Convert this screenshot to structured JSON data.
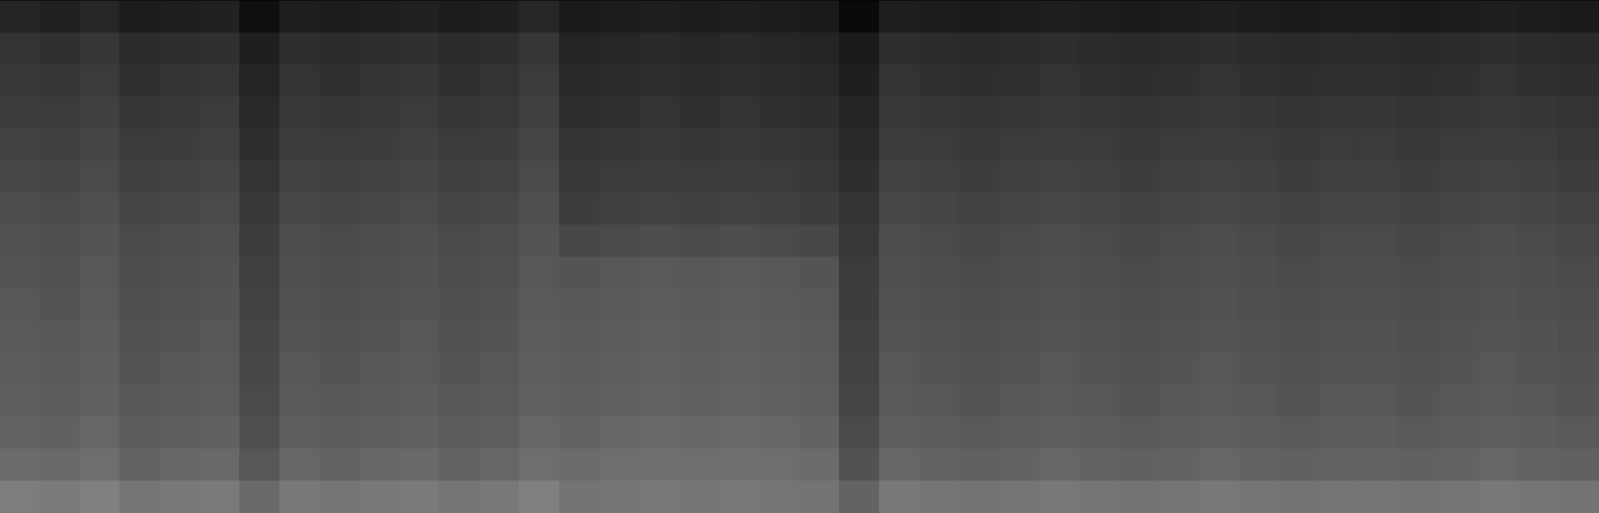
{
  "chart_data": {
    "type": "heatmap",
    "tick_labels": false,
    "value_range": [
      0,
      1
    ],
    "cells": [
      [
        0.14,
        0.13,
        0.15,
        0.11,
        0.12,
        0.13,
        0.06,
        0.12,
        0.11,
        0.12,
        0.13,
        0.11,
        0.12,
        0.15,
        0.1,
        0.11,
        0.12,
        0.11,
        0.12,
        0.11,
        0.1,
        0.04,
        0.12,
        0.11,
        0.1,
        0.11,
        0.12,
        0.11,
        0.1,
        0.11,
        0.12,
        0.11,
        0.1,
        0.11,
        0.11,
        0.1,
        0.11,
        0.12,
        0.11,
        0.1
      ],
      [
        0.2,
        0.19,
        0.21,
        0.17,
        0.18,
        0.19,
        0.12,
        0.18,
        0.17,
        0.18,
        0.19,
        0.17,
        0.18,
        0.21,
        0.14,
        0.15,
        0.16,
        0.15,
        0.16,
        0.15,
        0.14,
        0.1,
        0.18,
        0.17,
        0.16,
        0.17,
        0.18,
        0.17,
        0.16,
        0.17,
        0.18,
        0.17,
        0.16,
        0.17,
        0.17,
        0.16,
        0.17,
        0.18,
        0.17,
        0.16
      ],
      [
        0.22,
        0.21,
        0.23,
        0.19,
        0.2,
        0.21,
        0.14,
        0.2,
        0.19,
        0.2,
        0.21,
        0.19,
        0.2,
        0.23,
        0.16,
        0.17,
        0.18,
        0.17,
        0.18,
        0.17,
        0.16,
        0.12,
        0.2,
        0.19,
        0.18,
        0.19,
        0.2,
        0.19,
        0.18,
        0.19,
        0.2,
        0.19,
        0.18,
        0.19,
        0.19,
        0.18,
        0.19,
        0.2,
        0.19,
        0.18
      ],
      [
        0.24,
        0.23,
        0.25,
        0.21,
        0.22,
        0.23,
        0.16,
        0.22,
        0.21,
        0.22,
        0.23,
        0.21,
        0.22,
        0.25,
        0.18,
        0.19,
        0.2,
        0.19,
        0.2,
        0.19,
        0.18,
        0.14,
        0.22,
        0.21,
        0.2,
        0.21,
        0.22,
        0.21,
        0.2,
        0.21,
        0.22,
        0.21,
        0.2,
        0.21,
        0.21,
        0.2,
        0.21,
        0.22,
        0.21,
        0.2
      ],
      [
        0.26,
        0.25,
        0.27,
        0.23,
        0.24,
        0.25,
        0.18,
        0.24,
        0.23,
        0.24,
        0.25,
        0.23,
        0.24,
        0.27,
        0.2,
        0.21,
        0.22,
        0.21,
        0.22,
        0.21,
        0.2,
        0.16,
        0.24,
        0.23,
        0.22,
        0.23,
        0.24,
        0.23,
        0.22,
        0.23,
        0.24,
        0.23,
        0.22,
        0.23,
        0.23,
        0.22,
        0.23,
        0.24,
        0.23,
        0.22
      ],
      [
        0.28,
        0.27,
        0.29,
        0.25,
        0.26,
        0.27,
        0.2,
        0.26,
        0.25,
        0.26,
        0.27,
        0.25,
        0.26,
        0.29,
        0.22,
        0.23,
        0.24,
        0.23,
        0.24,
        0.23,
        0.22,
        0.18,
        0.26,
        0.25,
        0.24,
        0.25,
        0.26,
        0.25,
        0.24,
        0.25,
        0.26,
        0.25,
        0.24,
        0.25,
        0.25,
        0.24,
        0.25,
        0.26,
        0.25,
        0.24
      ],
      [
        0.3,
        0.29,
        0.31,
        0.27,
        0.28,
        0.29,
        0.22,
        0.28,
        0.27,
        0.28,
        0.29,
        0.27,
        0.28,
        0.31,
        0.24,
        0.25,
        0.26,
        0.25,
        0.26,
        0.25,
        0.24,
        0.2,
        0.28,
        0.27,
        0.26,
        0.27,
        0.28,
        0.27,
        0.26,
        0.27,
        0.28,
        0.27,
        0.26,
        0.27,
        0.27,
        0.26,
        0.27,
        0.28,
        0.27,
        0.26
      ],
      [
        0.32,
        0.31,
        0.33,
        0.29,
        0.3,
        0.31,
        0.24,
        0.3,
        0.29,
        0.3,
        0.31,
        0.29,
        0.3,
        0.33,
        0.28,
        0.29,
        0.3,
        0.29,
        0.3,
        0.29,
        0.28,
        0.22,
        0.3,
        0.29,
        0.28,
        0.29,
        0.3,
        0.29,
        0.28,
        0.29,
        0.3,
        0.29,
        0.28,
        0.29,
        0.29,
        0.28,
        0.29,
        0.3,
        0.29,
        0.28
      ],
      [
        0.33,
        0.32,
        0.34,
        0.3,
        0.31,
        0.32,
        0.25,
        0.31,
        0.3,
        0.31,
        0.32,
        0.3,
        0.31,
        0.34,
        0.33,
        0.34,
        0.35,
        0.34,
        0.35,
        0.34,
        0.33,
        0.23,
        0.31,
        0.3,
        0.29,
        0.3,
        0.31,
        0.3,
        0.29,
        0.3,
        0.31,
        0.3,
        0.29,
        0.3,
        0.3,
        0.29,
        0.3,
        0.31,
        0.3,
        0.29
      ],
      [
        0.34,
        0.33,
        0.35,
        0.31,
        0.32,
        0.33,
        0.26,
        0.32,
        0.31,
        0.32,
        0.33,
        0.31,
        0.32,
        0.35,
        0.34,
        0.35,
        0.36,
        0.35,
        0.36,
        0.35,
        0.34,
        0.24,
        0.32,
        0.31,
        0.3,
        0.31,
        0.32,
        0.31,
        0.3,
        0.31,
        0.32,
        0.31,
        0.3,
        0.31,
        0.31,
        0.3,
        0.31,
        0.32,
        0.31,
        0.3
      ],
      [
        0.35,
        0.34,
        0.36,
        0.32,
        0.33,
        0.34,
        0.27,
        0.33,
        0.32,
        0.33,
        0.34,
        0.32,
        0.33,
        0.36,
        0.35,
        0.36,
        0.37,
        0.36,
        0.37,
        0.36,
        0.35,
        0.25,
        0.33,
        0.32,
        0.31,
        0.32,
        0.33,
        0.32,
        0.31,
        0.32,
        0.33,
        0.32,
        0.31,
        0.32,
        0.32,
        0.31,
        0.32,
        0.33,
        0.32,
        0.31
      ],
      [
        0.36,
        0.35,
        0.37,
        0.33,
        0.34,
        0.35,
        0.28,
        0.34,
        0.33,
        0.34,
        0.35,
        0.33,
        0.34,
        0.37,
        0.36,
        0.37,
        0.38,
        0.37,
        0.38,
        0.37,
        0.36,
        0.26,
        0.34,
        0.33,
        0.32,
        0.33,
        0.34,
        0.33,
        0.32,
        0.33,
        0.34,
        0.33,
        0.32,
        0.33,
        0.33,
        0.32,
        0.33,
        0.34,
        0.33,
        0.32
      ],
      [
        0.37,
        0.36,
        0.38,
        0.34,
        0.35,
        0.36,
        0.29,
        0.35,
        0.34,
        0.35,
        0.36,
        0.34,
        0.35,
        0.38,
        0.37,
        0.38,
        0.39,
        0.38,
        0.39,
        0.38,
        0.37,
        0.27,
        0.35,
        0.34,
        0.33,
        0.34,
        0.35,
        0.34,
        0.33,
        0.34,
        0.35,
        0.34,
        0.33,
        0.34,
        0.34,
        0.33,
        0.34,
        0.35,
        0.34,
        0.33
      ],
      [
        0.39,
        0.38,
        0.4,
        0.36,
        0.37,
        0.38,
        0.31,
        0.37,
        0.36,
        0.37,
        0.38,
        0.36,
        0.37,
        0.4,
        0.39,
        0.4,
        0.41,
        0.4,
        0.41,
        0.4,
        0.39,
        0.29,
        0.37,
        0.36,
        0.35,
        0.36,
        0.37,
        0.36,
        0.35,
        0.36,
        0.37,
        0.36,
        0.35,
        0.36,
        0.36,
        0.35,
        0.36,
        0.37,
        0.36,
        0.35
      ],
      [
        0.42,
        0.41,
        0.43,
        0.39,
        0.4,
        0.41,
        0.34,
        0.4,
        0.39,
        0.4,
        0.41,
        0.39,
        0.4,
        0.43,
        0.42,
        0.43,
        0.44,
        0.43,
        0.44,
        0.43,
        0.42,
        0.32,
        0.4,
        0.39,
        0.38,
        0.39,
        0.4,
        0.39,
        0.38,
        0.39,
        0.4,
        0.39,
        0.38,
        0.39,
        0.39,
        0.38,
        0.39,
        0.4,
        0.39,
        0.38
      ],
      [
        0.49,
        0.48,
        0.5,
        0.46,
        0.47,
        0.48,
        0.41,
        0.47,
        0.46,
        0.47,
        0.48,
        0.46,
        0.47,
        0.5,
        0.45,
        0.46,
        0.47,
        0.46,
        0.47,
        0.46,
        0.45,
        0.39,
        0.47,
        0.46,
        0.45,
        0.46,
        0.47,
        0.46,
        0.45,
        0.46,
        0.47,
        0.46,
        0.45,
        0.46,
        0.46,
        0.45,
        0.46,
        0.47,
        0.46,
        0.45
      ]
    ]
  }
}
